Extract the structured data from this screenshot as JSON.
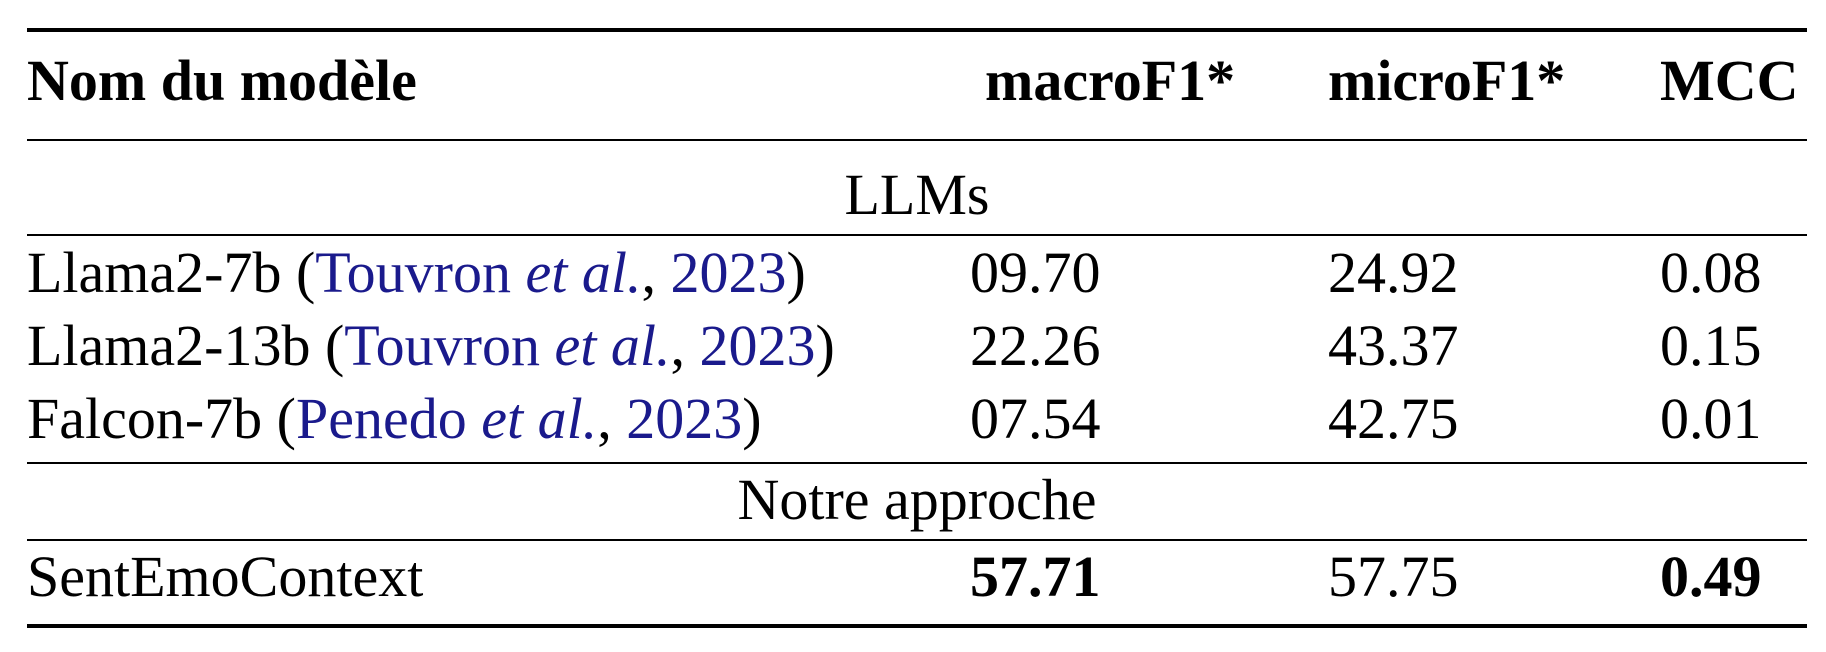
{
  "table": {
    "headers": {
      "name": "Nom du modèle",
      "macro": "macroF1*",
      "micro": "microF1*",
      "mcc": "MCC"
    },
    "sections": [
      {
        "title": "LLMs",
        "rows": [
          {
            "model": "Llama2-7b",
            "cite_author": "Touvron",
            "cite_etal": "et al.",
            "cite_year": "2023",
            "macro": "09.70",
            "micro": "24.92",
            "mcc": "0.08"
          },
          {
            "model": "Llama2-13b",
            "cite_author": "Touvron",
            "cite_etal": "et al.",
            "cite_year": "2023",
            "macro": "22.26",
            "micro": "43.37",
            "mcc": "0.15"
          },
          {
            "model": "Falcon-7b",
            "cite_author": "Penedo",
            "cite_etal": "et al.",
            "cite_year": "2023",
            "macro": "07.54",
            "micro": "42.75",
            "mcc": "0.01"
          }
        ]
      },
      {
        "title": "Notre approche",
        "rows": [
          {
            "model": "SentEmoContext",
            "macro": "57.71",
            "micro": "57.75",
            "mcc": "0.49"
          }
        ]
      }
    ]
  }
}
